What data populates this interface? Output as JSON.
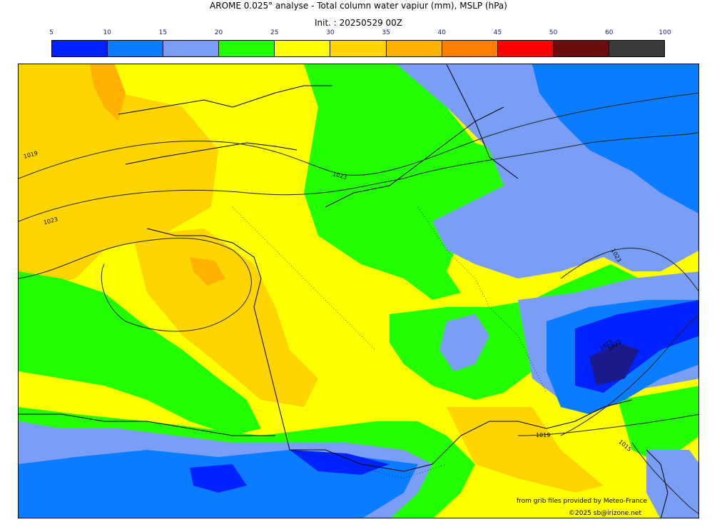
{
  "header": {
    "title": "AROME 0.025° analyse - Total column water vapiur (mm), MSLP (hPa)",
    "init": "Init. : 20250529 00Z"
  },
  "legend": {
    "ticks": [
      "5",
      "10",
      "15",
      "20",
      "25",
      "30",
      "35",
      "40",
      "45",
      "50",
      "60",
      "100"
    ],
    "colors": [
      "#0022ff",
      "#0a7cff",
      "#7a9ef5",
      "#22ff00",
      "#ffff00",
      "#ffd500",
      "#ffb300",
      "#ff7f00",
      "#ff0000",
      "#6b0d0d",
      "#3a3a3a"
    ]
  },
  "map": {
    "isobars": [
      "1019",
      "1023",
      "1023",
      "1023",
      "1023",
      "1023",
      "1019",
      "1015"
    ]
  },
  "footer": {
    "credit_line1": "from grib files provided by Meteo-France",
    "credit_line2": "©2025 sb@irizone.net"
  }
}
